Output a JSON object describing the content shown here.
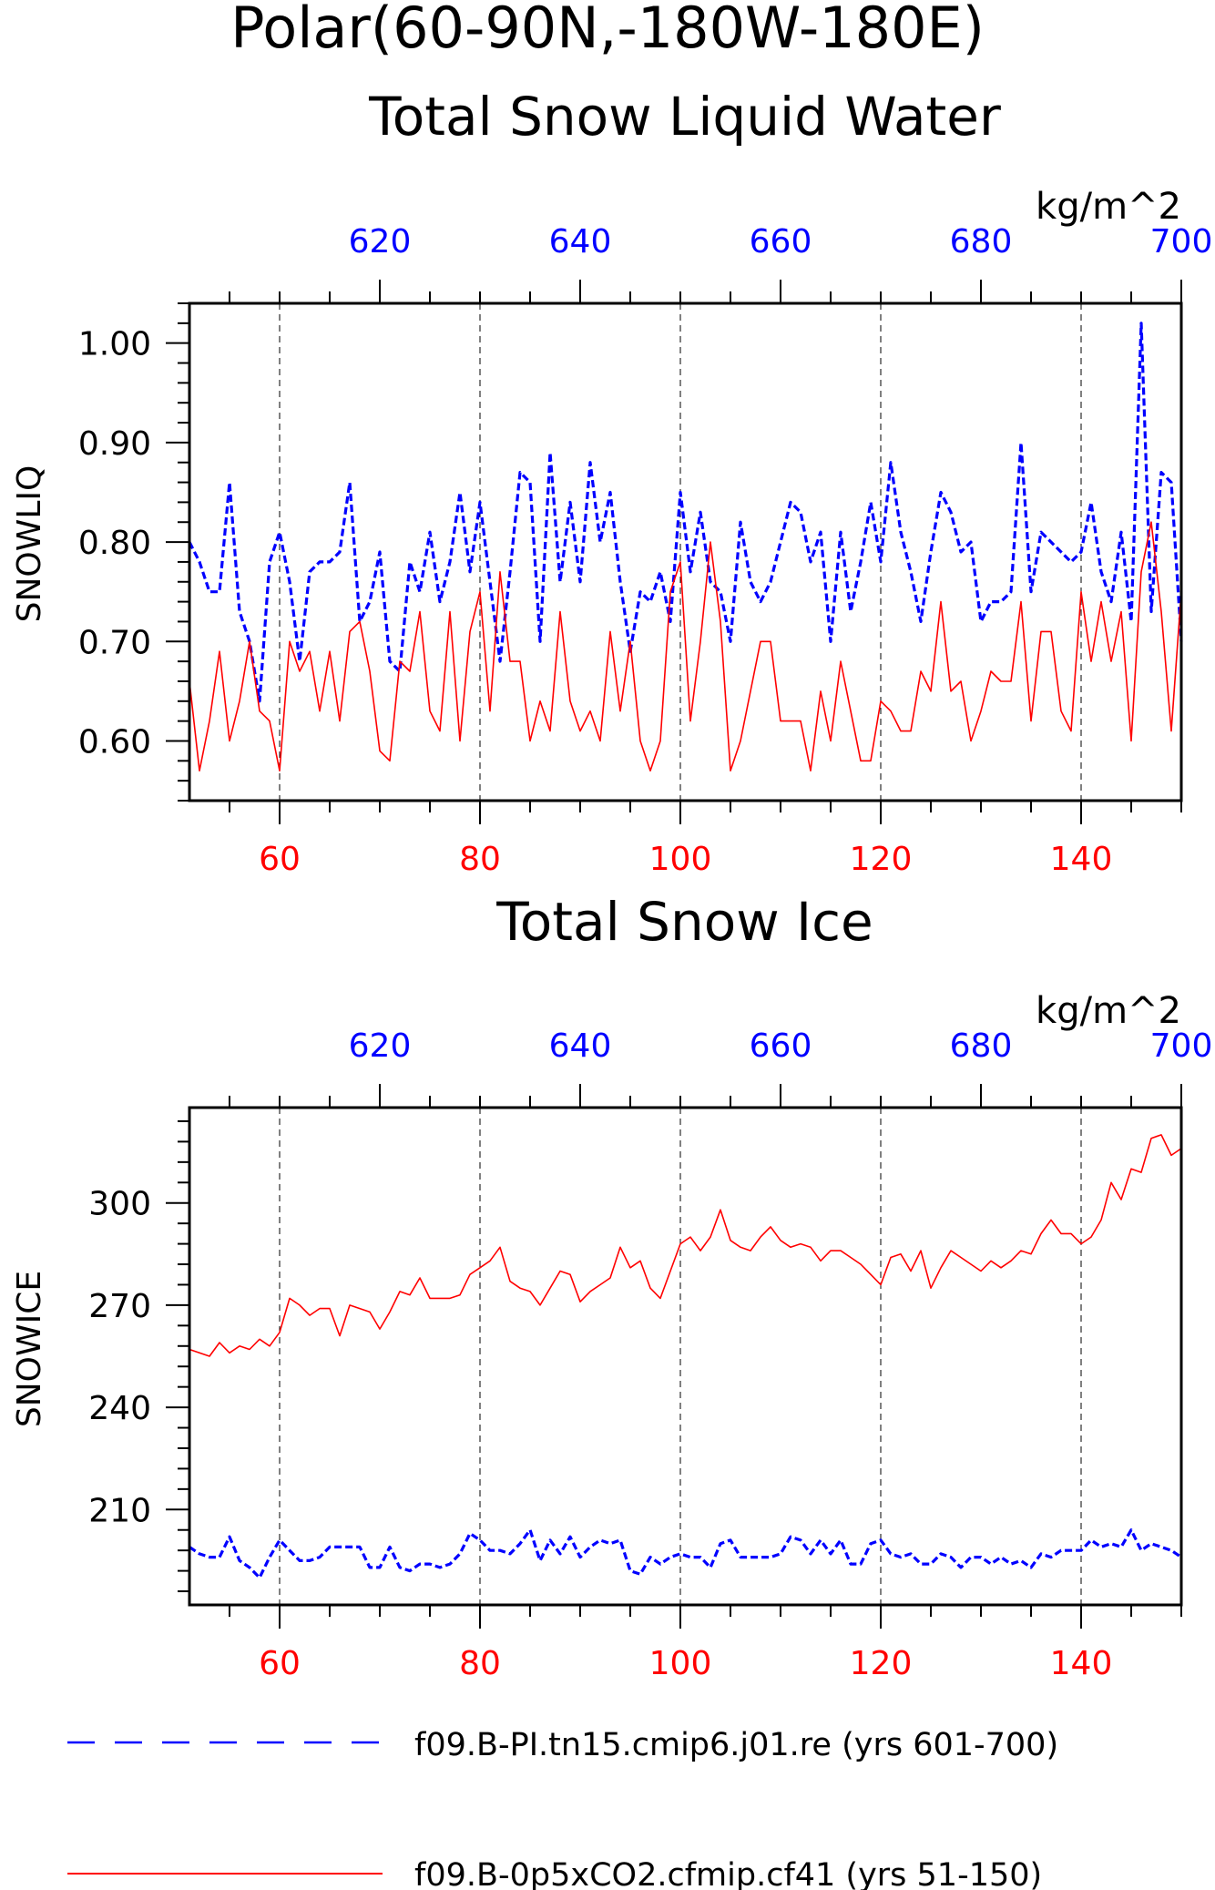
{
  "page_title": "Polar(60-90N,-180W-180E)",
  "chart_data": [
    {
      "type": "line",
      "title": "Total Snow Liquid Water",
      "ylabel": "SNOWLIQ",
      "units": "kg/m^2",
      "ylim": [
        0.54,
        1.04
      ],
      "y_ticks": [
        0.6,
        0.7,
        0.8,
        0.9,
        1.0
      ],
      "y_tick_labels": [
        "0.60",
        "0.70",
        "0.80",
        "0.90",
        "1.00"
      ],
      "bottom_axis": {
        "range": [
          51,
          150
        ],
        "ticks": [
          60,
          80,
          100,
          120,
          140
        ],
        "color": "#ff0000"
      },
      "top_axis": {
        "range": [
          601,
          700
        ],
        "ticks": [
          620,
          640,
          660,
          680,
          700
        ],
        "color": "#0000ff"
      },
      "grid": "vertical dashed at bottom-axis major ticks",
      "series": [
        {
          "color": "#0000ff",
          "style": "dashed",
          "axis": "top",
          "x": [
            601,
            602,
            603,
            604,
            605,
            606,
            607,
            608,
            609,
            610,
            611,
            612,
            613,
            614,
            615,
            616,
            617,
            618,
            619,
            620,
            621,
            622,
            623,
            624,
            625,
            626,
            627,
            628,
            629,
            630,
            631,
            632,
            633,
            634,
            635,
            636,
            637,
            638,
            639,
            640,
            641,
            642,
            643,
            644,
            645,
            646,
            647,
            648,
            649,
            650,
            651,
            652,
            653,
            654,
            655,
            656,
            657,
            658,
            659,
            660,
            661,
            662,
            663,
            664,
            665,
            666,
            667,
            668,
            669,
            670,
            671,
            672,
            673,
            674,
            675,
            676,
            677,
            678,
            679,
            680,
            681,
            682,
            683,
            684,
            685,
            686,
            687,
            688,
            689,
            690,
            691,
            692,
            693,
            694,
            695,
            696,
            697,
            698,
            699,
            700
          ],
          "values": [
            0.8,
            0.78,
            0.75,
            0.75,
            0.86,
            0.73,
            0.7,
            0.64,
            0.78,
            0.81,
            0.76,
            0.68,
            0.77,
            0.78,
            0.78,
            0.79,
            0.86,
            0.72,
            0.74,
            0.79,
            0.68,
            0.67,
            0.78,
            0.75,
            0.81,
            0.74,
            0.78,
            0.85,
            0.77,
            0.84,
            0.76,
            0.68,
            0.77,
            0.87,
            0.86,
            0.7,
            0.89,
            0.76,
            0.84,
            0.76,
            0.88,
            0.8,
            0.85,
            0.76,
            0.69,
            0.75,
            0.74,
            0.77,
            0.72,
            0.85,
            0.77,
            0.83,
            0.76,
            0.75,
            0.7,
            0.82,
            0.76,
            0.74,
            0.76,
            0.8,
            0.84,
            0.83,
            0.78,
            0.81,
            0.7,
            0.81,
            0.73,
            0.78,
            0.84,
            0.78,
            0.88,
            0.81,
            0.77,
            0.72,
            0.79,
            0.85,
            0.83,
            0.79,
            0.8,
            0.72,
            0.74,
            0.74,
            0.75,
            0.9,
            0.75,
            0.81,
            0.8,
            0.79,
            0.78,
            0.79,
            0.84,
            0.77,
            0.74,
            0.81,
            0.72,
            1.02,
            0.73,
            0.87,
            0.86,
            0.7
          ]
        },
        {
          "color": "#ff0000",
          "style": "solid",
          "axis": "bottom",
          "x": [
            51,
            52,
            53,
            54,
            55,
            56,
            57,
            58,
            59,
            60,
            61,
            62,
            63,
            64,
            65,
            66,
            67,
            68,
            69,
            70,
            71,
            72,
            73,
            74,
            75,
            76,
            77,
            78,
            79,
            80,
            81,
            82,
            83,
            84,
            85,
            86,
            87,
            88,
            89,
            90,
            91,
            92,
            93,
            94,
            95,
            96,
            97,
            98,
            99,
            100,
            101,
            102,
            103,
            104,
            105,
            106,
            107,
            108,
            109,
            110,
            111,
            112,
            113,
            114,
            115,
            116,
            117,
            118,
            119,
            120,
            121,
            122,
            123,
            124,
            125,
            126,
            127,
            128,
            129,
            130,
            131,
            132,
            133,
            134,
            135,
            136,
            137,
            138,
            139,
            140,
            141,
            142,
            143,
            144,
            145,
            146,
            147,
            148,
            149,
            150
          ],
          "values": [
            0.66,
            0.57,
            0.62,
            0.69,
            0.6,
            0.64,
            0.7,
            0.63,
            0.62,
            0.57,
            0.7,
            0.67,
            0.69,
            0.63,
            0.69,
            0.62,
            0.71,
            0.72,
            0.67,
            0.59,
            0.58,
            0.68,
            0.67,
            0.73,
            0.63,
            0.61,
            0.73,
            0.6,
            0.71,
            0.75,
            0.63,
            0.77,
            0.68,
            0.68,
            0.6,
            0.64,
            0.61,
            0.73,
            0.64,
            0.61,
            0.63,
            0.6,
            0.71,
            0.63,
            0.7,
            0.6,
            0.57,
            0.6,
            0.75,
            0.78,
            0.62,
            0.7,
            0.8,
            0.72,
            0.57,
            0.6,
            0.65,
            0.7,
            0.7,
            0.62,
            0.62,
            0.62,
            0.57,
            0.65,
            0.6,
            0.68,
            0.63,
            0.58,
            0.58,
            0.64,
            0.63,
            0.61,
            0.61,
            0.67,
            0.65,
            0.74,
            0.65,
            0.66,
            0.6,
            0.63,
            0.67,
            0.66,
            0.66,
            0.74,
            0.62,
            0.71,
            0.71,
            0.63,
            0.61,
            0.75,
            0.68,
            0.74,
            0.68,
            0.73,
            0.6,
            0.77,
            0.82,
            0.73,
            0.61,
            0.75
          ]
        }
      ]
    },
    {
      "type": "line",
      "title": "Total Snow Ice",
      "ylabel": "SNOWICE",
      "units": "kg/m^2",
      "ylim": [
        182,
        328
      ],
      "y_ticks": [
        210,
        240,
        270,
        300
      ],
      "y_tick_labels": [
        "210",
        "240",
        "270",
        "300"
      ],
      "bottom_axis": {
        "range": [
          51,
          150
        ],
        "ticks": [
          60,
          80,
          100,
          120,
          140
        ],
        "color": "#ff0000"
      },
      "top_axis": {
        "range": [
          601,
          700
        ],
        "ticks": [
          620,
          640,
          660,
          680,
          700
        ],
        "color": "#0000ff"
      },
      "grid": "vertical dashed at bottom-axis major ticks",
      "series": [
        {
          "color": "#ff0000",
          "style": "solid",
          "axis": "bottom",
          "x": [
            51,
            52,
            53,
            54,
            55,
            56,
            57,
            58,
            59,
            60,
            61,
            62,
            63,
            64,
            65,
            66,
            67,
            68,
            69,
            70,
            71,
            72,
            73,
            74,
            75,
            76,
            77,
            78,
            79,
            80,
            81,
            82,
            83,
            84,
            85,
            86,
            87,
            88,
            89,
            90,
            91,
            92,
            93,
            94,
            95,
            96,
            97,
            98,
            99,
            100,
            101,
            102,
            103,
            104,
            105,
            106,
            107,
            108,
            109,
            110,
            111,
            112,
            113,
            114,
            115,
            116,
            117,
            118,
            119,
            120,
            121,
            122,
            123,
            124,
            125,
            126,
            127,
            128,
            129,
            130,
            131,
            132,
            133,
            134,
            135,
            136,
            137,
            138,
            139,
            140,
            141,
            142,
            143,
            144,
            145,
            146,
            147,
            148,
            149,
            150
          ],
          "values": [
            257,
            256,
            255,
            259,
            256,
            258,
            257,
            260,
            258,
            262,
            272,
            270,
            267,
            269,
            269,
            261,
            270,
            269,
            268,
            263,
            268,
            274,
            273,
            278,
            272,
            272,
            272,
            273,
            279,
            281,
            283,
            287,
            277,
            275,
            274,
            270,
            275,
            280,
            279,
            271,
            274,
            276,
            278,
            287,
            281,
            283,
            275,
            272,
            280,
            288,
            290,
            286,
            290,
            298,
            289,
            287,
            286,
            290,
            293,
            289,
            287,
            288,
            287,
            283,
            286,
            286,
            284,
            282,
            279,
            276,
            284,
            285,
            280,
            286,
            275,
            281,
            286,
            284,
            282,
            280,
            283,
            281,
            283,
            286,
            285,
            291,
            295,
            291,
            291,
            288,
            290,
            295,
            306,
            301,
            310,
            309,
            319,
            320,
            314,
            316
          ]
        },
        {
          "color": "#0000ff",
          "style": "dashed",
          "axis": "top",
          "x": [
            601,
            602,
            603,
            604,
            605,
            606,
            607,
            608,
            609,
            610,
            611,
            612,
            613,
            614,
            615,
            616,
            617,
            618,
            619,
            620,
            621,
            622,
            623,
            624,
            625,
            626,
            627,
            628,
            629,
            630,
            631,
            632,
            633,
            634,
            635,
            636,
            637,
            638,
            639,
            640,
            641,
            642,
            643,
            644,
            645,
            646,
            647,
            648,
            649,
            650,
            651,
            652,
            653,
            654,
            655,
            656,
            657,
            658,
            659,
            660,
            661,
            662,
            663,
            664,
            665,
            666,
            667,
            668,
            669,
            670,
            671,
            672,
            673,
            674,
            675,
            676,
            677,
            678,
            679,
            680,
            681,
            682,
            683,
            684,
            685,
            686,
            687,
            688,
            689,
            690,
            691,
            692,
            693,
            694,
            695,
            696,
            697,
            698,
            699,
            700
          ],
          "values": [
            199,
            197,
            196,
            196,
            202,
            195,
            193,
            190,
            196,
            201,
            198,
            195,
            195,
            196,
            199,
            199,
            199,
            199,
            193,
            193,
            199,
            193,
            192,
            194,
            194,
            193,
            194,
            197,
            203,
            201,
            198,
            198,
            197,
            200,
            204,
            195,
            201,
            197,
            202,
            196,
            199,
            201,
            200,
            201,
            192,
            191,
            196,
            194,
            196,
            197,
            196,
            196,
            193,
            200,
            201,
            196,
            196,
            196,
            196,
            197,
            202,
            201,
            197,
            201,
            197,
            201,
            194,
            194,
            200,
            201,
            197,
            196,
            197,
            194,
            194,
            197,
            196,
            193,
            196,
            196,
            194,
            196,
            194,
            195,
            193,
            197,
            196,
            198,
            198,
            198,
            201,
            199,
            200,
            199,
            204,
            198,
            200,
            199,
            198,
            196
          ]
        }
      ]
    }
  ],
  "legend": {
    "position": "bottom",
    "items": [
      {
        "label": "f09.B-PI.tn15.cmip6.j01.re (yrs 601-700)",
        "color": "#0000ff",
        "style": "dashed"
      },
      {
        "label": "f09.B-0p5xCO2.cfmip.cf41 (yrs 51-150)",
        "color": "#ff0000",
        "style": "solid"
      }
    ]
  }
}
